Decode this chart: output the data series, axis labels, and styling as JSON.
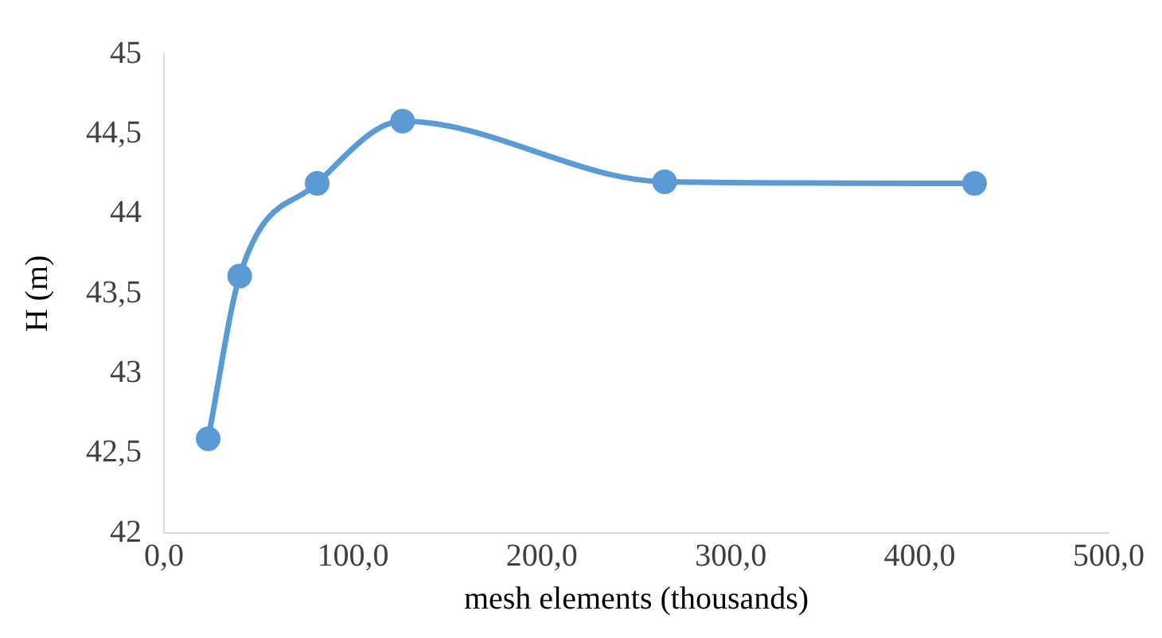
{
  "chart_data": {
    "type": "line",
    "xlabel": "mesh elements (thousands)",
    "ylabel": "H (m)",
    "x": [
      23.4,
      40.1,
      81.1,
      126.3,
      265,
      429
    ],
    "series": [
      {
        "color": "#5b9bd5",
        "values": [
          42.59,
          43.61,
          44.19,
          44.58,
          44.2,
          44.19
        ]
      }
    ],
    "xlim": [
      0,
      500
    ],
    "xticks": [
      {
        "value": 0,
        "label": "0,0"
      },
      {
        "value": 100,
        "label": "100,0"
      },
      {
        "value": 200,
        "label": "200,0"
      },
      {
        "value": 300,
        "label": "300,0"
      },
      {
        "value": 400,
        "label": "400,0"
      },
      {
        "value": 500,
        "label": "500,0"
      }
    ],
    "ylim": [
      42,
      45
    ],
    "yticks": [
      42,
      {
        "value": 42.5,
        "label": "42,5"
      },
      43,
      {
        "value": 43.5,
        "label": "43,5"
      },
      44,
      {
        "value": 44.5,
        "label": "44,5"
      },
      45
    ],
    "grid": false,
    "legend": false,
    "marker": "circle",
    "line_style": "solid"
  }
}
